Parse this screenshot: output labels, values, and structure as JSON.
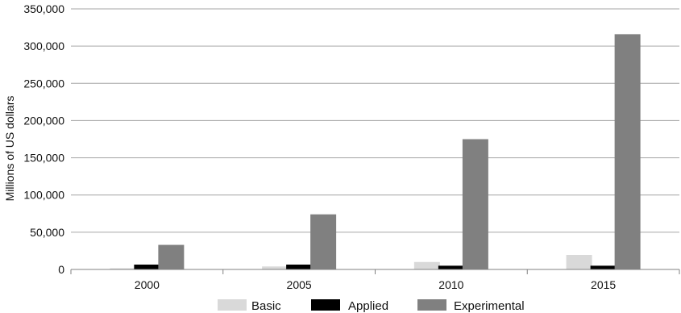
{
  "chart_data": {
    "type": "bar",
    "title": "",
    "xlabel": "",
    "ylabel": "Millions of US dollars",
    "categories": [
      "2000",
      "2005",
      "2010",
      "2015"
    ],
    "ylim": [
      0,
      350000
    ],
    "yticks": [
      0,
      50000,
      100000,
      150000,
      200000,
      250000,
      300000,
      350000
    ],
    "ytick_labels": [
      "0",
      "50,000",
      "100,000",
      "150,000",
      "200,000",
      "250,000",
      "300,000",
      "350,000"
    ],
    "grid": true,
    "legend_position": "bottom",
    "series": [
      {
        "name": "Basic",
        "color": "#d9d9d9",
        "values": [
          1500,
          4000,
          10000,
          19500
        ]
      },
      {
        "name": "Applied",
        "color": "#000000",
        "values": [
          6500,
          6500,
          5000,
          5000
        ]
      },
      {
        "name": "Experimental",
        "color": "#808080",
        "values": [
          33000,
          74000,
          175000,
          316000
        ]
      }
    ]
  }
}
